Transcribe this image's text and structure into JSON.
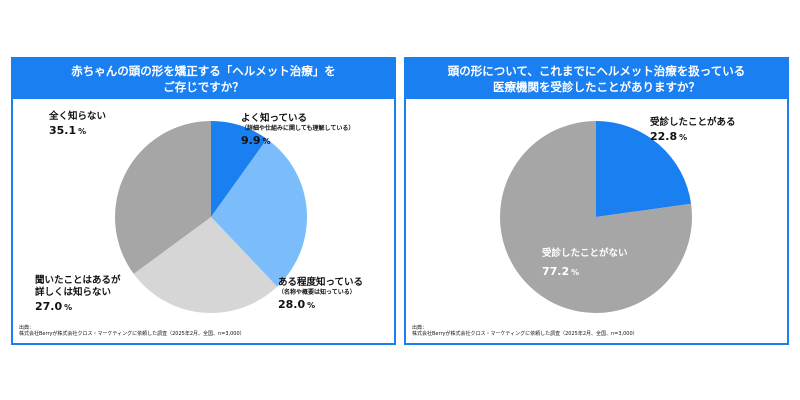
{
  "left": {
    "title_line1": "赤ちゃんの頭の形を矯正する「ヘルメット治療」を",
    "title_line2": "ご存じですか？",
    "source_label": "出典：",
    "source_text": "株式会社Berryが株式会社クロス・マーケティングに依頼した調査（2025年2月、全国、n=3,000）"
  },
  "right": {
    "title_line1": "頭の形について、これまでにヘルメット治療を扱っている",
    "title_line2": "医療機関を受診したことがありますか？",
    "source_label": "出典：",
    "source_text": "株式会社Berryが株式会社クロス・マーケティングに依頼した調査（2025年2月、全国、n=3,000）"
  },
  "chart_data": [
    {
      "type": "pie",
      "title": "赤ちゃんの頭の形を矯正する「ヘルメット治療」をご存じですか？",
      "unit": "%",
      "slices": [
        {
          "label": "よく知っている",
          "sublabel": "（詳細や仕組みに関しても理解している）",
          "value": 9.9,
          "value_text": "9.9",
          "color": "#1a7ff0"
        },
        {
          "label": "ある程度知っている",
          "sublabel": "（名称や概要は知っている）",
          "value": 28.0,
          "value_text": "28.0",
          "color": "#7bbdfb"
        },
        {
          "label": "聞いたことはあるが",
          "label2": "詳しくは知らない",
          "value": 27.0,
          "value_text": "27.0",
          "color": "#d6d6d6"
        },
        {
          "label": "全く知らない",
          "value": 35.1,
          "value_text": "35.1",
          "color": "#a6a6a6"
        }
      ]
    },
    {
      "type": "pie",
      "title": "頭の形について、これまでにヘルメット治療を扱っている医療機関を受診したことがありますか？",
      "unit": "%",
      "slices": [
        {
          "label": "受診したことがある",
          "value": 22.8,
          "value_text": "22.8",
          "color": "#1a7ff0"
        },
        {
          "label": "受診したことがない",
          "value": 77.2,
          "value_text": "77.2",
          "color": "#a6a6a6"
        }
      ]
    }
  ]
}
